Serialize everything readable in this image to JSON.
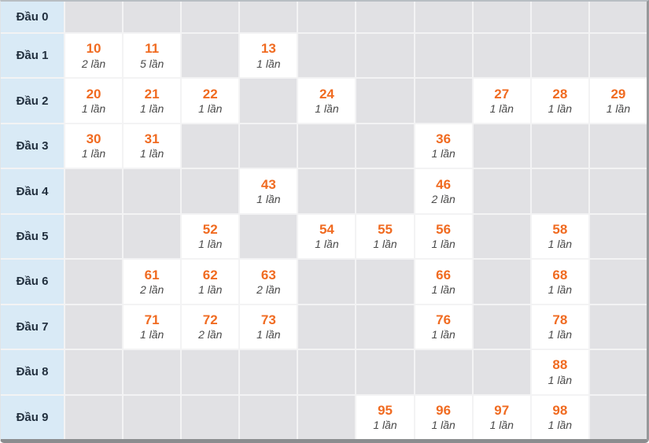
{
  "table": {
    "row_label_prefix": "Đầu",
    "unit_suffix": "lần",
    "rows": [
      {
        "label": "Đầu 0",
        "cells": []
      },
      {
        "label": "Đầu 1",
        "cells": [
          {
            "col": 0,
            "number": "10",
            "count": "2 lần"
          },
          {
            "col": 1,
            "number": "11",
            "count": "5 lần"
          },
          {
            "col": 3,
            "number": "13",
            "count": "1 lần"
          }
        ]
      },
      {
        "label": "Đầu 2",
        "cells": [
          {
            "col": 0,
            "number": "20",
            "count": "1 lần"
          },
          {
            "col": 1,
            "number": "21",
            "count": "1 lần"
          },
          {
            "col": 2,
            "number": "22",
            "count": "1 lần"
          },
          {
            "col": 4,
            "number": "24",
            "count": "1 lần"
          },
          {
            "col": 7,
            "number": "27",
            "count": "1 lần"
          },
          {
            "col": 8,
            "number": "28",
            "count": "1 lần"
          },
          {
            "col": 9,
            "number": "29",
            "count": "1 lần"
          }
        ]
      },
      {
        "label": "Đầu 3",
        "cells": [
          {
            "col": 0,
            "number": "30",
            "count": "1 lần"
          },
          {
            "col": 1,
            "number": "31",
            "count": "1 lần"
          },
          {
            "col": 6,
            "number": "36",
            "count": "1 lần"
          }
        ]
      },
      {
        "label": "Đầu 4",
        "cells": [
          {
            "col": 3,
            "number": "43",
            "count": "1 lần"
          },
          {
            "col": 6,
            "number": "46",
            "count": "2 lần"
          }
        ]
      },
      {
        "label": "Đầu 5",
        "cells": [
          {
            "col": 2,
            "number": "52",
            "count": "1 lần"
          },
          {
            "col": 4,
            "number": "54",
            "count": "1 lần"
          },
          {
            "col": 5,
            "number": "55",
            "count": "1 lần"
          },
          {
            "col": 6,
            "number": "56",
            "count": "1 lần"
          },
          {
            "col": 8,
            "number": "58",
            "count": "1 lần"
          }
        ]
      },
      {
        "label": "Đầu 6",
        "cells": [
          {
            "col": 1,
            "number": "61",
            "count": "2 lần"
          },
          {
            "col": 2,
            "number": "62",
            "count": "1 lần"
          },
          {
            "col": 3,
            "number": "63",
            "count": "2 lần"
          },
          {
            "col": 6,
            "number": "66",
            "count": "1 lần"
          },
          {
            "col": 8,
            "number": "68",
            "count": "1 lần"
          }
        ]
      },
      {
        "label": "Đầu 7",
        "cells": [
          {
            "col": 1,
            "number": "71",
            "count": "1 lần"
          },
          {
            "col": 2,
            "number": "72",
            "count": "2 lần"
          },
          {
            "col": 3,
            "number": "73",
            "count": "1 lần"
          },
          {
            "col": 6,
            "number": "76",
            "count": "1 lần"
          },
          {
            "col": 8,
            "number": "78",
            "count": "1 lần"
          }
        ]
      },
      {
        "label": "Đầu 8",
        "cells": [
          {
            "col": 8,
            "number": "88",
            "count": "1 lần"
          }
        ]
      },
      {
        "label": "Đầu 9",
        "cells": [
          {
            "col": 5,
            "number": "95",
            "count": "1 lần"
          },
          {
            "col": 6,
            "number": "96",
            "count": "1 lần"
          },
          {
            "col": 7,
            "number": "97",
            "count": "1 lần"
          },
          {
            "col": 8,
            "number": "98",
            "count": "1 lần"
          }
        ]
      }
    ]
  },
  "chart_data": {
    "type": "table",
    "title": "",
    "row_headers": [
      "Đầu 0",
      "Đầu 1",
      "Đầu 2",
      "Đầu 3",
      "Đầu 4",
      "Đầu 5",
      "Đầu 6",
      "Đầu 7",
      "Đầu 8",
      "Đầu 9"
    ],
    "col_count": 10,
    "value_unit": "lần",
    "entries": [
      {
        "number": 10,
        "count": 2
      },
      {
        "number": 11,
        "count": 5
      },
      {
        "number": 13,
        "count": 1
      },
      {
        "number": 20,
        "count": 1
      },
      {
        "number": 21,
        "count": 1
      },
      {
        "number": 22,
        "count": 1
      },
      {
        "number": 24,
        "count": 1
      },
      {
        "number": 27,
        "count": 1
      },
      {
        "number": 28,
        "count": 1
      },
      {
        "number": 29,
        "count": 1
      },
      {
        "number": 30,
        "count": 1
      },
      {
        "number": 31,
        "count": 1
      },
      {
        "number": 36,
        "count": 1
      },
      {
        "number": 43,
        "count": 1
      },
      {
        "number": 46,
        "count": 2
      },
      {
        "number": 52,
        "count": 1
      },
      {
        "number": 54,
        "count": 1
      },
      {
        "number": 55,
        "count": 1
      },
      {
        "number": 56,
        "count": 1
      },
      {
        "number": 58,
        "count": 1
      },
      {
        "number": 61,
        "count": 2
      },
      {
        "number": 62,
        "count": 1
      },
      {
        "number": 63,
        "count": 2
      },
      {
        "number": 66,
        "count": 1
      },
      {
        "number": 68,
        "count": 1
      },
      {
        "number": 71,
        "count": 1
      },
      {
        "number": 72,
        "count": 2
      },
      {
        "number": 73,
        "count": 1
      },
      {
        "number": 76,
        "count": 1
      },
      {
        "number": 78,
        "count": 1
      },
      {
        "number": 88,
        "count": 1
      },
      {
        "number": 95,
        "count": 1
      },
      {
        "number": 96,
        "count": 1
      },
      {
        "number": 97,
        "count": 1
      },
      {
        "number": 98,
        "count": 1
      }
    ]
  },
  "colors": {
    "accent_orange": "#f06b21",
    "label_bg": "#d9eaf6",
    "label_text": "#22303f",
    "empty_cell": "#e1e1e4",
    "filled_cell": "#ffffff",
    "count_text": "#4a4a4a",
    "frame_dark": "#8b8d8f"
  }
}
